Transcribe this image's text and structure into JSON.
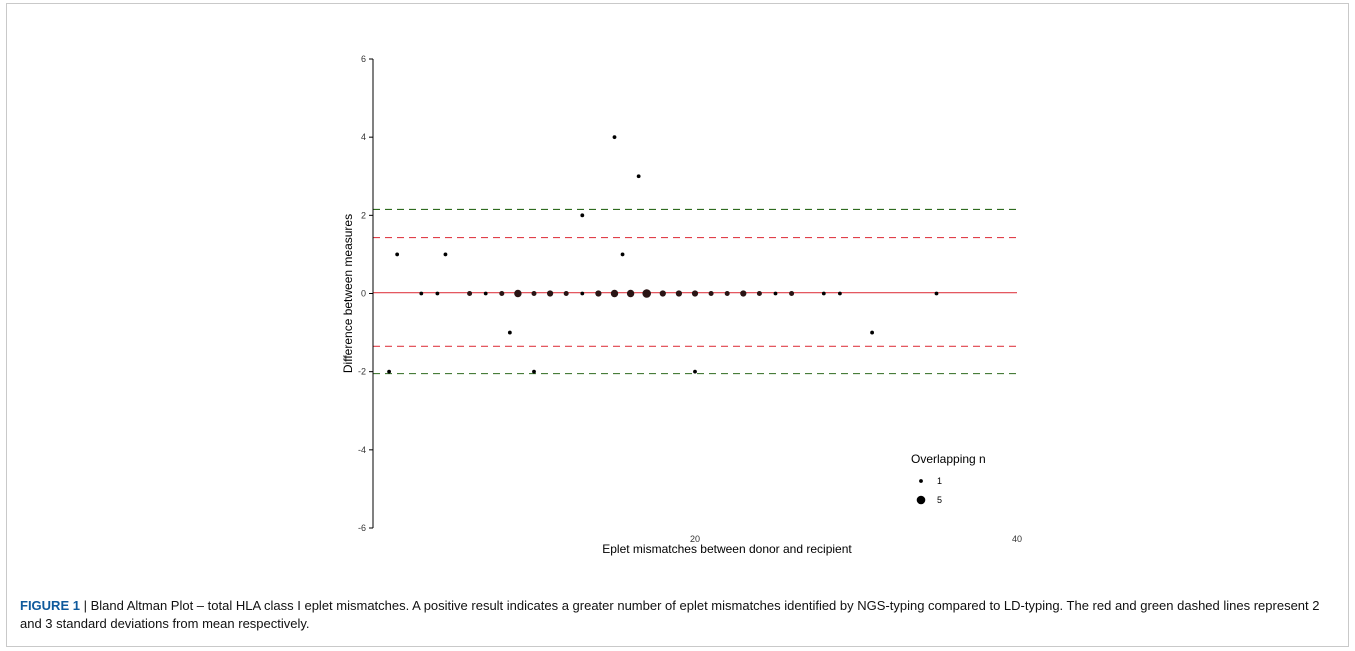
{
  "caption": {
    "label": "FIGURE 1",
    "separator": " | ",
    "text": "Bland Altman Plot – total HLA class I eplet mismatches. A positive result indicates a greater number of eplet mismatches identified by NGS-typing compared to LD-typing. The red and green dashed lines represent 2 and 3 standard deviations from mean respectively."
  },
  "chart_data": {
    "type": "scatter",
    "title": "",
    "xlabel": "Eplet mismatches between donor and recipient",
    "ylabel": "Difference between measures",
    "xlim": [
      0,
      40
    ],
    "ylim": [
      -6,
      6
    ],
    "x_ticks": [
      20,
      40
    ],
    "y_ticks": [
      -6,
      -4,
      -2,
      0,
      2,
      4,
      6
    ],
    "grid": false,
    "legend": {
      "title": "Overlapping n",
      "placement": "bottom-right",
      "entries": [
        {
          "label": "1",
          "n": 1
        },
        {
          "label": "5",
          "n": 5
        }
      ]
    },
    "reference_lines": [
      {
        "role": "mean",
        "y": 0.02,
        "style": "solid",
        "color": "#e0404a"
      },
      {
        "role": "+2 SD",
        "y": 1.43,
        "style": "dashed",
        "color": "#e0404a"
      },
      {
        "role": "-2 SD",
        "y": -1.35,
        "style": "dashed",
        "color": "#e0404a"
      },
      {
        "role": "+3 SD",
        "y": 2.15,
        "style": "dashed",
        "color": "#2e6b1f"
      },
      {
        "role": "-3 SD",
        "y": -2.05,
        "style": "dashed",
        "color": "#2e6b1f"
      }
    ],
    "points": [
      {
        "x": 1,
        "y": -2,
        "n": 1
      },
      {
        "x": 1.5,
        "y": 1,
        "n": 1
      },
      {
        "x": 3,
        "y": 0,
        "n": 1
      },
      {
        "x": 4,
        "y": 0,
        "n": 1
      },
      {
        "x": 4.5,
        "y": 1,
        "n": 1
      },
      {
        "x": 6,
        "y": 0,
        "n": 2
      },
      {
        "x": 7,
        "y": 0,
        "n": 1
      },
      {
        "x": 8,
        "y": 0,
        "n": 2
      },
      {
        "x": 8.5,
        "y": -1,
        "n": 1
      },
      {
        "x": 9,
        "y": 0,
        "n": 4
      },
      {
        "x": 10,
        "y": 0,
        "n": 2
      },
      {
        "x": 10,
        "y": -2,
        "n": 1
      },
      {
        "x": 11,
        "y": 0,
        "n": 3
      },
      {
        "x": 12,
        "y": 0,
        "n": 2
      },
      {
        "x": 13,
        "y": 0,
        "n": 1
      },
      {
        "x": 13,
        "y": 2,
        "n": 1
      },
      {
        "x": 14,
        "y": 0,
        "n": 3
      },
      {
        "x": 15,
        "y": 0,
        "n": 4
      },
      {
        "x": 15,
        "y": 4,
        "n": 1
      },
      {
        "x": 15.5,
        "y": 1,
        "n": 1
      },
      {
        "x": 16,
        "y": 0,
        "n": 4
      },
      {
        "x": 16.5,
        "y": 3,
        "n": 1
      },
      {
        "x": 17,
        "y": 0,
        "n": 5
      },
      {
        "x": 18,
        "y": 0,
        "n": 3
      },
      {
        "x": 19,
        "y": 0,
        "n": 3
      },
      {
        "x": 20,
        "y": 0,
        "n": 3
      },
      {
        "x": 20,
        "y": -2,
        "n": 1
      },
      {
        "x": 21,
        "y": 0,
        "n": 2
      },
      {
        "x": 22,
        "y": 0,
        "n": 2
      },
      {
        "x": 23,
        "y": 0,
        "n": 3
      },
      {
        "x": 24,
        "y": 0,
        "n": 2
      },
      {
        "x": 25,
        "y": 0,
        "n": 1
      },
      {
        "x": 26,
        "y": 0,
        "n": 2
      },
      {
        "x": 28,
        "y": 0,
        "n": 1
      },
      {
        "x": 29,
        "y": 0,
        "n": 1
      },
      {
        "x": 31,
        "y": -1,
        "n": 1
      },
      {
        "x": 35,
        "y": 0,
        "n": 1
      }
    ]
  }
}
